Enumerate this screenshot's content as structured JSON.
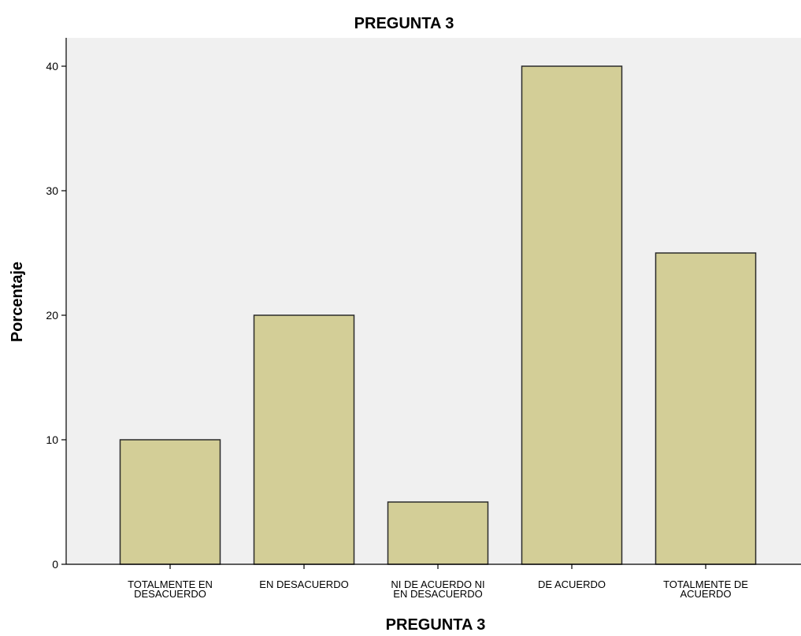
{
  "chart_data": {
    "type": "bar",
    "title": "PREGUNTA 3",
    "xlabel": "PREGUNTA 3",
    "ylabel": "Porcentaje",
    "categories": [
      [
        "TOTALMENTE EN",
        "DESACUERDO"
      ],
      [
        "EN DESACUERDO"
      ],
      [
        "NI DE ACUERDO NI",
        "EN DESACUERDO"
      ],
      [
        "DE ACUERDO"
      ],
      [
        "TOTALMENTE DE",
        "ACUERDO"
      ]
    ],
    "values": [
      10,
      20,
      5,
      40,
      25
    ],
    "ylim": [
      0,
      40
    ],
    "yticks": [
      0,
      10,
      20,
      30,
      40
    ],
    "grid": false,
    "legend": "none",
    "colors": {
      "bar_fill": "#d3ce97",
      "bar_stroke": "#2b2b2b",
      "plot_background": "#f0f0f0",
      "axis": "#000000"
    }
  }
}
